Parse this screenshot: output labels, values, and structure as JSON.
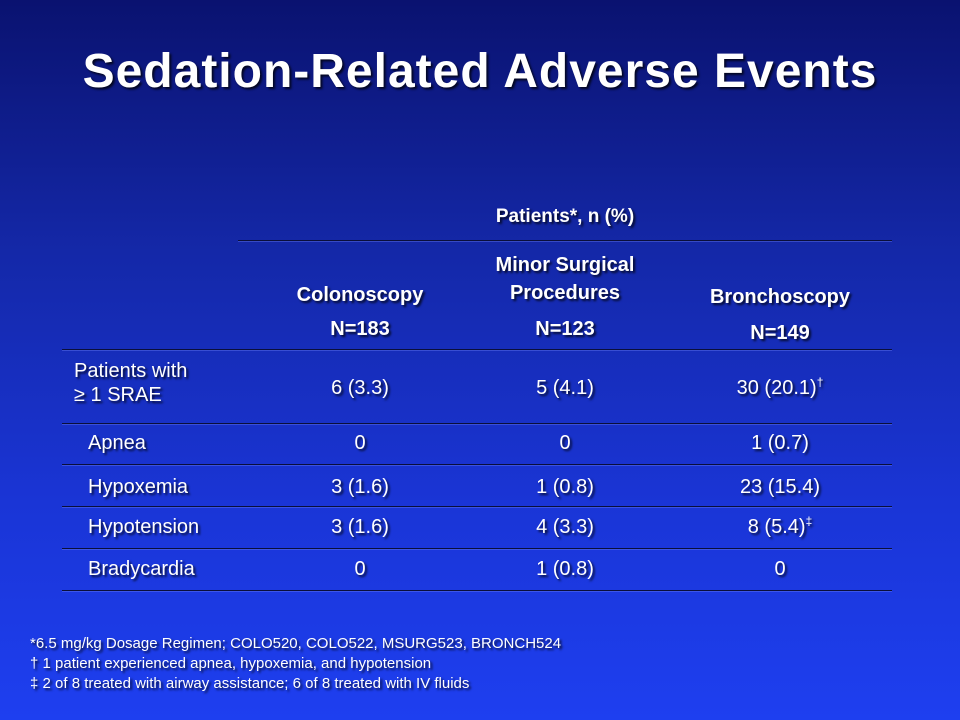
{
  "title": "Sedation-Related Adverse Events",
  "table": {
    "group_header": "Patients*, n (%)",
    "columns": [
      {
        "name": "Colonoscopy",
        "n": "N=183"
      },
      {
        "name_line1": "Minor Surgical",
        "name_line2": "Procedures",
        "n": "N=123"
      },
      {
        "name": "Bronchoscopy",
        "n": "N=149"
      }
    ],
    "rows": [
      {
        "label_line1": "Patients with",
        "label_line2": "≥ 1 SRAE",
        "values": [
          "6 (3.3)",
          "5 (4.1)",
          "30 (20.1)"
        ],
        "marks": [
          "",
          "",
          "†"
        ]
      },
      {
        "label": "Apnea",
        "values": [
          "0",
          "0",
          "1 (0.7)"
        ],
        "marks": [
          "",
          "",
          ""
        ]
      },
      {
        "label": "Hypoxemia",
        "values": [
          "3 (1.6)",
          "1 (0.8)",
          "23 (15.4)"
        ],
        "marks": [
          "",
          "",
          ""
        ]
      },
      {
        "label": "Hypotension",
        "values": [
          "3 (1.6)",
          "4 (3.3)",
          "8 (5.4)"
        ],
        "marks": [
          "",
          "",
          "‡"
        ]
      },
      {
        "label": "Bradycardia",
        "values": [
          "0",
          "1 (0.8)",
          "0"
        ],
        "marks": [
          "",
          "",
          ""
        ]
      }
    ]
  },
  "footnotes": [
    "*6.5 mg/kg Dosage Regimen; COLO520, COLO522, MSURG523, BRONCH524",
    "† 1 patient experienced apnea, hypoxemia, and hypotension",
    "‡ 2 of 8 treated with airway assistance; 6 of 8 treated with IV fluids"
  ]
}
